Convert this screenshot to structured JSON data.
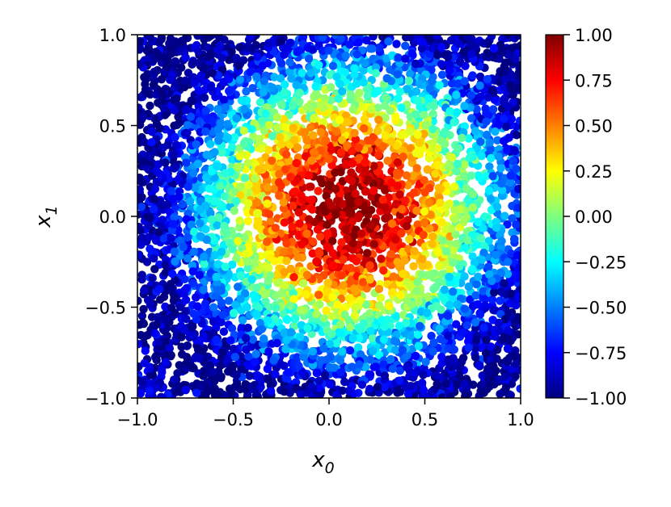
{
  "chart_data": {
    "type": "scatter",
    "title": "",
    "xlabel": "x",
    "xlabel_subscript": "0",
    "ylabel": "x",
    "ylabel_subscript": "1",
    "xlim": [
      -1.0,
      1.0
    ],
    "ylim": [
      -1.0,
      1.0
    ],
    "xticks": [
      "−1.0",
      "−0.5",
      "0.0",
      "0.5",
      "1.0"
    ],
    "yticks": [
      "−1.0",
      "−0.5",
      "0.0",
      "0.5",
      "1.0"
    ],
    "xtick_values": [
      -1.0,
      -0.5,
      0.0,
      0.5,
      1.0
    ],
    "ytick_values": [
      -1.0,
      -0.5,
      0.0,
      0.5,
      1.0
    ],
    "grid": false,
    "colormap": "jet",
    "colorbar": {
      "range": [
        -1.0,
        1.0
      ],
      "ticks": [
        "−1.00",
        "−0.75",
        "−0.50",
        "−0.25",
        "0.00",
        "0.25",
        "0.50",
        "0.75",
        "1.00"
      ],
      "tick_values": [
        -1.0,
        -0.75,
        -0.5,
        -0.25,
        0.0,
        0.25,
        0.5,
        0.75,
        1.0
      ]
    },
    "color_function": "c = cos(π·sqrt(x0² + x1²)) with the peak near (0.1, 0.05)",
    "peak_center": [
      0.1,
      0.05
    ],
    "point_count": 5000,
    "colors": {
      "jet_stops": [
        "#00007f",
        "#0000ff",
        "#007fff",
        "#00ffff",
        "#7fff7f",
        "#ffff00",
        "#ff7f00",
        "#ff0000",
        "#7f0000"
      ]
    }
  }
}
